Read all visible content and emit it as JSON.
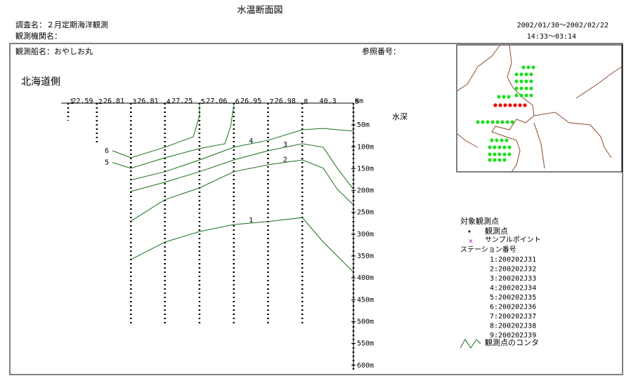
{
  "header": {
    "title": "水温断面図",
    "survey": "調査名：２月定期海洋観測",
    "agency": "観測機関名：",
    "period": "2002/01/30～2002/02/22",
    "time": "14:33～03:14",
    "ship": "観測船名：おやしお丸",
    "ref": "参照番号："
  },
  "chart_data": {
    "type": "section",
    "side_label": "北海道側",
    "y_label": "水深",
    "distance_unit": "Km",
    "xlim": [
      0,
      224.75
    ],
    "ylim": [
      0,
      610
    ],
    "yticks": [
      {
        "value": 50,
        "label": "50m"
      },
      {
        "value": 100,
        "label": "100m"
      },
      {
        "value": 150,
        "label": "150m"
      },
      {
        "value": 200,
        "label": "200m"
      },
      {
        "value": 250,
        "label": "250m"
      },
      {
        "value": 300,
        "label": "300m"
      },
      {
        "value": 350,
        "label": "350m"
      },
      {
        "value": 400,
        "label": "400m"
      },
      {
        "value": 450,
        "label": "450m"
      },
      {
        "value": 500,
        "label": "500m"
      },
      {
        "value": 550,
        "label": "550m"
      },
      {
        "value": 600,
        "label": "600m"
      }
    ],
    "stations": {
      "labels": [
        "1",
        "2",
        "3",
        "4",
        "5",
        "6",
        "7",
        "8",
        "9"
      ],
      "x": [
        0,
        22.59,
        49.4,
        76.21,
        103.46,
        130.52,
        157.47,
        184.45,
        224.75
      ],
      "depths": [
        40,
        95,
        505,
        505,
        505,
        505,
        505,
        505,
        610
      ]
    },
    "distances": [
      22.59,
      26.81,
      26.81,
      27.25,
      27.06,
      26.95,
      26.98,
      40.3
    ],
    "contours": [
      {
        "label": "1",
        "x": [
          49.4,
          76.21,
          103.46,
          130.52,
          157.47,
          184.45,
          201,
          224.75
        ],
        "y": [
          358,
          318,
          294,
          278,
          271,
          262,
          318,
          387
        ]
      },
      {
        "label": "2",
        "x": [
          49.4,
          76.21,
          103.46,
          130.52,
          157.47,
          184.45,
          201,
          212,
          224.75
        ],
        "y": [
          270,
          221,
          194,
          157,
          141,
          130,
          149,
          197,
          233
        ]
      },
      {
        "label": "3",
        "x": [
          49.4,
          76.21,
          103.46,
          130.52,
          157.47,
          184.45,
          201,
          212,
          224.75
        ],
        "y": [
          202,
          181,
          157,
          130,
          109,
          93,
          101,
          149,
          197
        ]
      },
      {
        "label": "4",
        "x": [
          49.4,
          76.21,
          103.46,
          130.52,
          157.47,
          184.45,
          201,
          224.75
        ],
        "y": [
          176,
          157,
          130,
          101,
          85,
          61,
          58,
          64
        ]
      },
      {
        "label": "5",
        "x": [
          34.9,
          49.4,
          76.21,
          103.46,
          123.5,
          128,
          130.52
        ],
        "y": [
          136,
          149,
          125,
          104,
          93,
          53,
          5
        ]
      },
      {
        "label": "6",
        "x": [
          34.9,
          49.4,
          76.21,
          98.6,
          103.46,
          103.46
        ],
        "y": [
          109,
          125,
          101,
          77,
          29,
          5
        ]
      }
    ],
    "contour_color": "#1a6e1a"
  },
  "legend": {
    "title": "対象観測点",
    "observed": "観測点",
    "sample": "サンプルポイント",
    "station_title": "ステーション番号",
    "stations": [
      "1:200202J31",
      "2:200202J32",
      "3:200202J33",
      "4:200202J34",
      "5:200202J35",
      "6:200202J36",
      "7:200202J37",
      "8:200202J38",
      "9:200202J39"
    ],
    "contour": "観測点のコンタ"
  }
}
